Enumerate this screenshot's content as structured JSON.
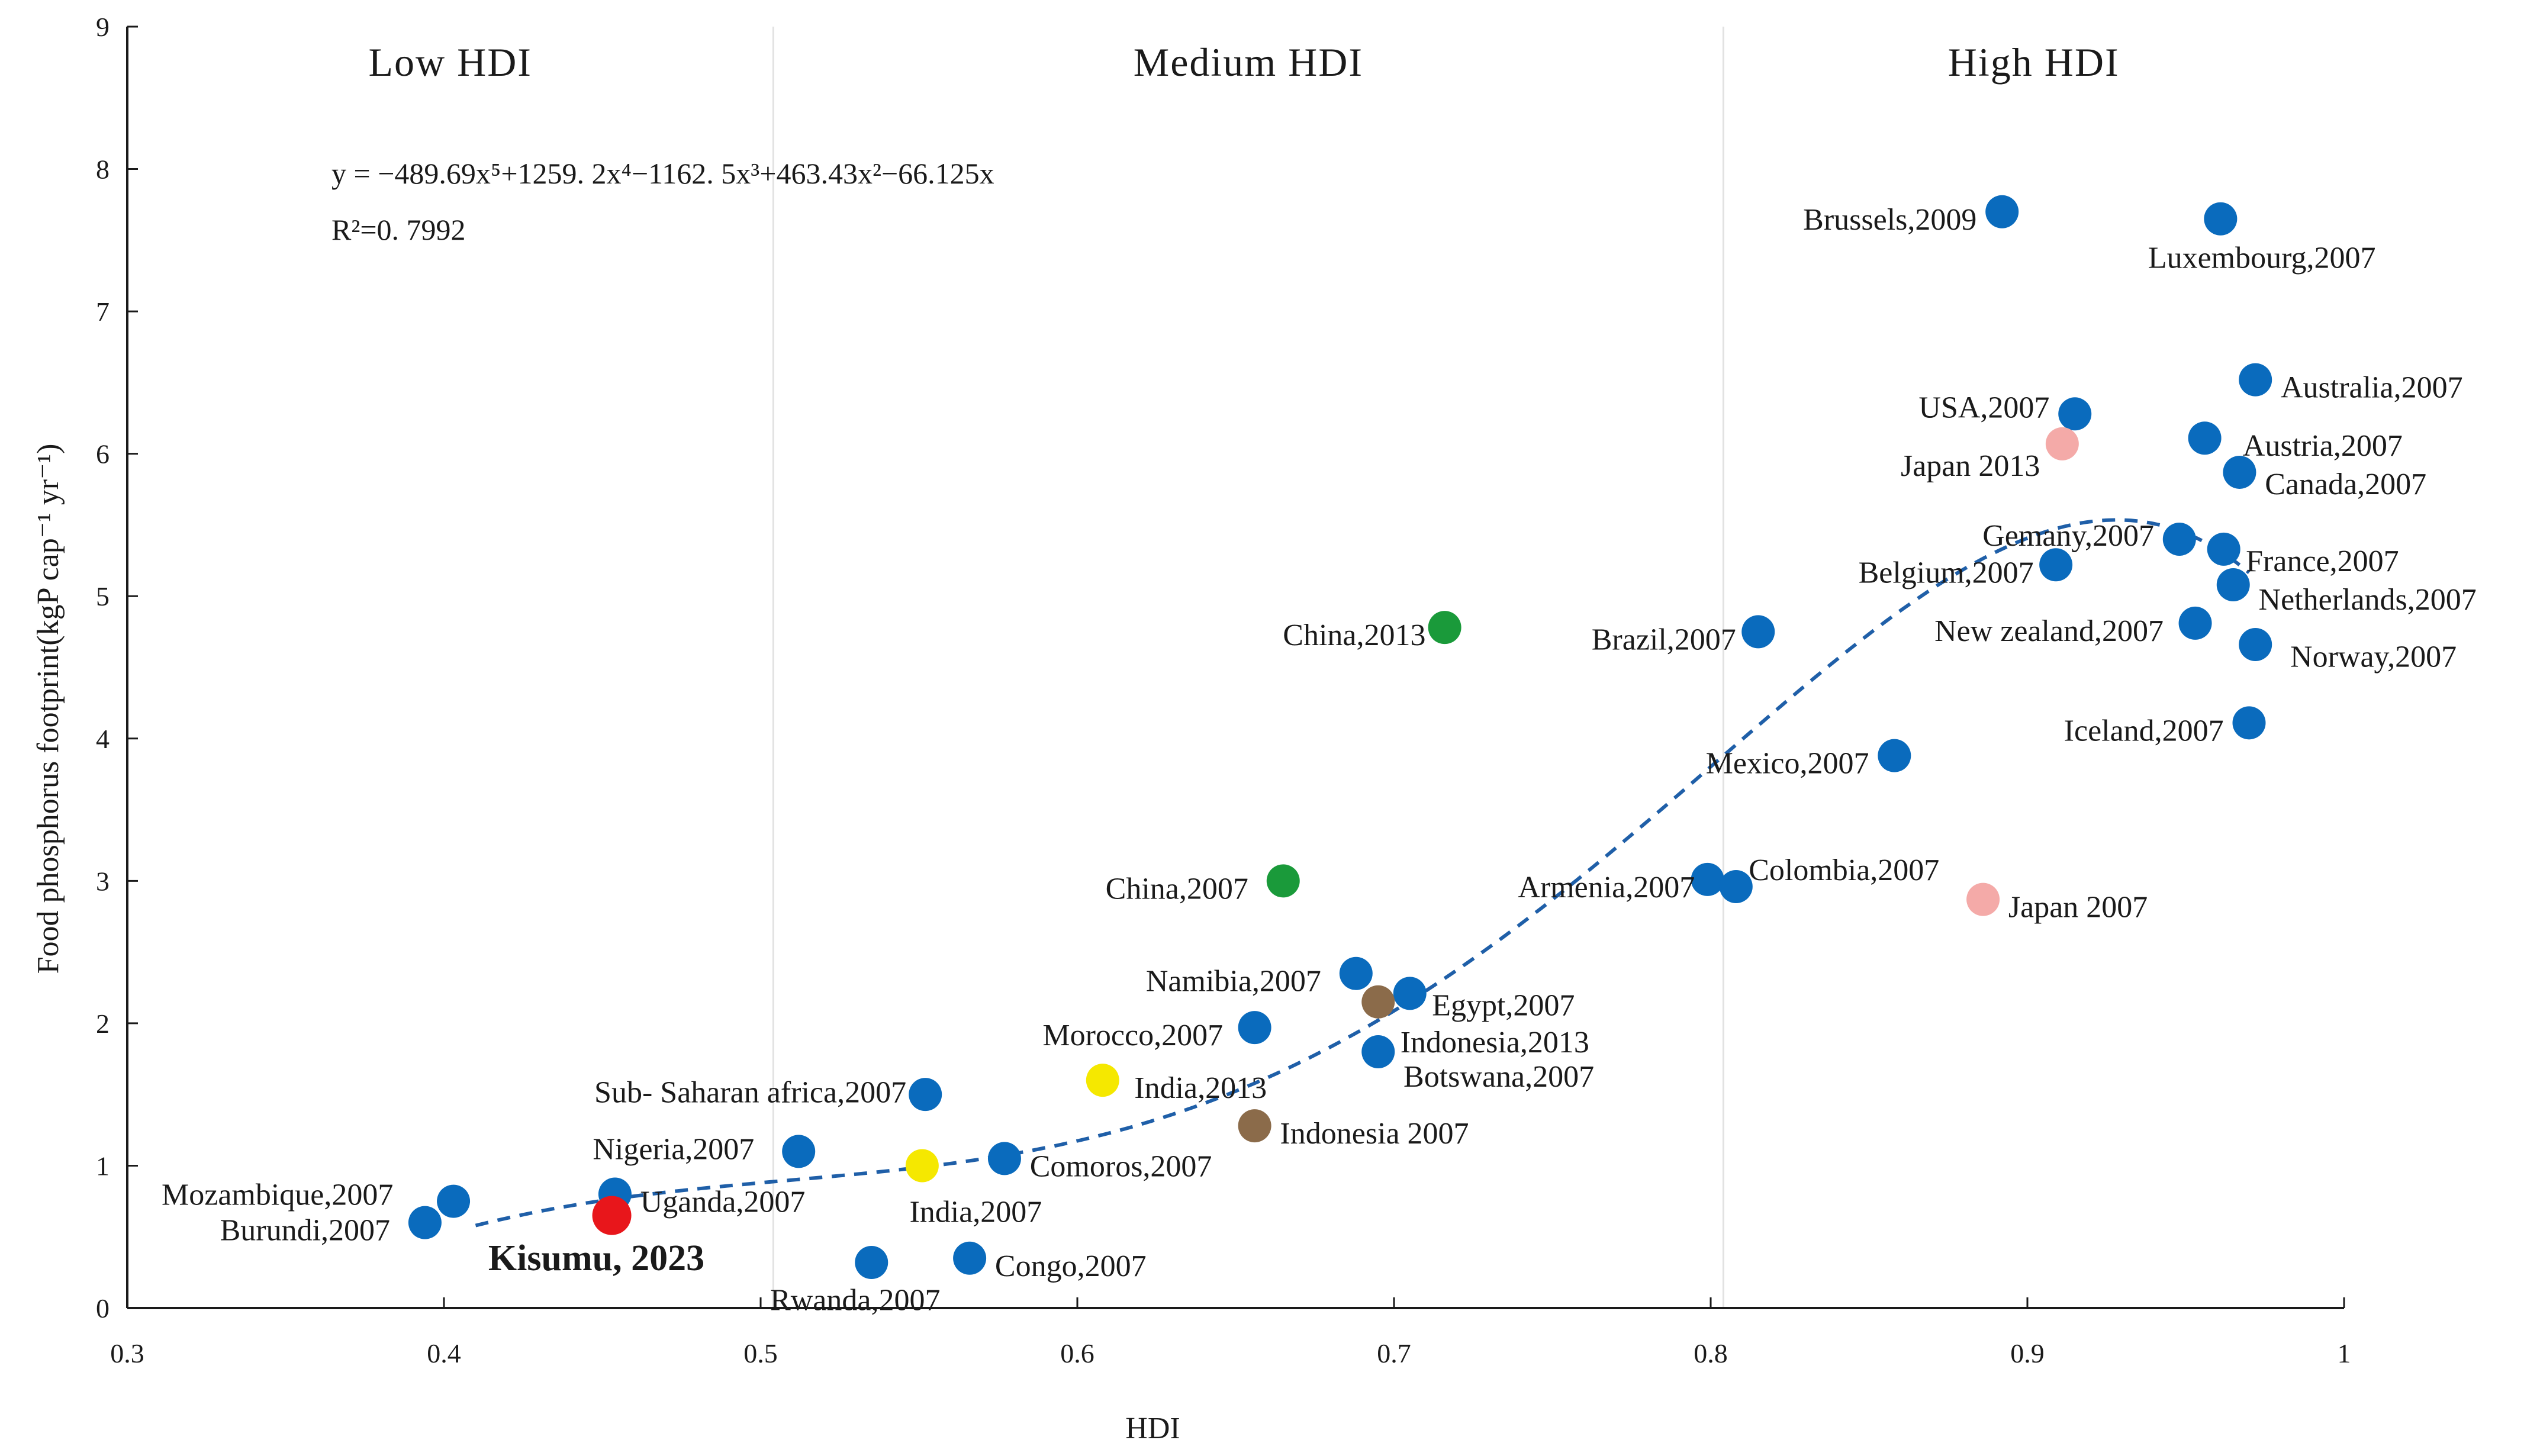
{
  "chart_data": {
    "type": "scatter",
    "title": "",
    "xlabel": "HDI",
    "ylabel": "Food phosphorus footprint(kgP cap⁻¹ yr⁻¹)",
    "xlim": [
      0.3,
      1.0
    ],
    "ylim": [
      0,
      9
    ],
    "x_ticks": [
      "0.3",
      "0.4",
      "0.5",
      "0.6",
      "0.7",
      "0.8",
      "0.9",
      "1"
    ],
    "y_ticks": [
      "0",
      "1",
      "2",
      "3",
      "4",
      "5",
      "6",
      "7",
      "8",
      "9"
    ],
    "regions": [
      {
        "label": "Low HDI",
        "from": 0.3,
        "to": 0.504
      },
      {
        "label": "Medium HDI",
        "from": 0.504,
        "to": 0.804
      },
      {
        "label": "High HDI",
        "from": 0.804,
        "to": 1.0
      }
    ],
    "equation": "y = −489.69x⁵+1259. 2x⁴−1162. 5x³+463.43x²−66.125x",
    "r_squared": "R²=0. 7992",
    "fit_curve": {
      "style": "dashed",
      "color": "#1f5fa8",
      "x_range": [
        0.41,
        0.97
      ]
    },
    "colors": {
      "blue": "#0a6bbd",
      "green": "#1a9a3a",
      "yellow": "#f5e800",
      "brown": "#8b6b4a",
      "pink": "#f4aaa8",
      "red": "#e8161b",
      "fit": "#1f5fa8"
    },
    "points": [
      {
        "label": "Mozambique,2007",
        "x": 0.403,
        "y": 0.75,
        "color": "blue",
        "anchor": "end",
        "lx": 0.384,
        "ly": 0.8
      },
      {
        "label": "Burundi,2007",
        "x": 0.394,
        "y": 0.6,
        "color": "blue",
        "anchor": "end",
        "lx": 0.383,
        "ly": 0.55
      },
      {
        "label": "Uganda,2007",
        "x": 0.454,
        "y": 0.8,
        "color": "blue",
        "anchor": "start",
        "lx": 0.462,
        "ly": 0.75
      },
      {
        "label": "Kisumu, 2023",
        "x": 0.453,
        "y": 0.65,
        "color": "red",
        "anchor": "start",
        "lx": 0.414,
        "ly": 0.34,
        "bold": true
      },
      {
        "label": "Nigeria,2007",
        "x": 0.512,
        "y": 1.1,
        "color": "blue",
        "anchor": "end",
        "lx": 0.498,
        "ly": 1.12
      },
      {
        "label": "Sub- Saharan africa,2007",
        "x": 0.552,
        "y": 1.5,
        "color": "blue",
        "anchor": "end",
        "lx": 0.546,
        "ly": 1.52
      },
      {
        "label": "Rwanda,2007",
        "x": 0.535,
        "y": 0.32,
        "color": "blue",
        "anchor": "start",
        "lx": 0.503,
        "ly": 0.06
      },
      {
        "label": "Congo,2007",
        "x": 0.566,
        "y": 0.35,
        "color": "blue",
        "anchor": "start",
        "lx": 0.574,
        "ly": 0.3
      },
      {
        "label": "India,2007",
        "x": 0.551,
        "y": 1.0,
        "color": "yellow",
        "anchor": "start",
        "lx": 0.547,
        "ly": 0.68
      },
      {
        "label": "Comoros,2007",
        "x": 0.577,
        "y": 1.05,
        "color": "blue",
        "anchor": "start",
        "lx": 0.585,
        "ly": 1.0
      },
      {
        "label": "India,2013",
        "x": 0.608,
        "y": 1.6,
        "color": "yellow",
        "anchor": "start",
        "lx": 0.618,
        "ly": 1.55
      },
      {
        "label": "Morocco,2007",
        "x": 0.656,
        "y": 1.97,
        "color": "blue",
        "anchor": "end",
        "lx": 0.646,
        "ly": 1.92
      },
      {
        "label": "Indonesia 2007",
        "x": 0.656,
        "y": 1.28,
        "color": "brown",
        "anchor": "start",
        "lx": 0.664,
        "ly": 1.23
      },
      {
        "label": "China,2007",
        "x": 0.665,
        "y": 3.0,
        "color": "green",
        "anchor": "end",
        "lx": 0.654,
        "ly": 2.95
      },
      {
        "label": "Namibia,2007",
        "x": 0.688,
        "y": 2.35,
        "color": "blue",
        "anchor": "end",
        "lx": 0.677,
        "ly": 2.3
      },
      {
        "label": "Egypt,2007",
        "x": 0.705,
        "y": 2.21,
        "color": "blue",
        "anchor": "start",
        "lx": 0.712,
        "ly": 2.13
      },
      {
        "label": "Indonesia,2013",
        "x": 0.695,
        "y": 2.15,
        "color": "brown",
        "anchor": "start",
        "lx": 0.702,
        "ly": 1.87
      },
      {
        "label": "Botswana,2007",
        "x": 0.695,
        "y": 1.8,
        "color": "blue",
        "anchor": "start",
        "lx": 0.703,
        "ly": 1.63
      },
      {
        "label": "China,2013",
        "x": 0.716,
        "y": 4.78,
        "color": "green",
        "anchor": "end",
        "lx": 0.71,
        "ly": 4.73
      },
      {
        "label": "Brazil,2007",
        "x": 0.815,
        "y": 4.75,
        "color": "blue",
        "anchor": "end",
        "lx": 0.808,
        "ly": 4.7
      },
      {
        "label": "Armenia,2007",
        "x": 0.799,
        "y": 3.01,
        "color": "blue",
        "anchor": "end",
        "lx": 0.795,
        "ly": 2.96
      },
      {
        "label": "Colombia,2007",
        "x": 0.808,
        "y": 2.96,
        "color": "blue",
        "anchor": "start",
        "lx": 0.812,
        "ly": 3.08
      },
      {
        "label": "Mexico,2007",
        "x": 0.858,
        "y": 3.88,
        "color": "blue",
        "anchor": "end",
        "lx": 0.85,
        "ly": 3.83
      },
      {
        "label": "Japan 2007",
        "x": 0.886,
        "y": 2.87,
        "color": "pink",
        "anchor": "start",
        "lx": 0.894,
        "ly": 2.82
      },
      {
        "label": "Brussels,2009",
        "x": 0.892,
        "y": 7.7,
        "color": "blue",
        "anchor": "end",
        "lx": 0.884,
        "ly": 7.65
      },
      {
        "label": "Luxembourg,2007",
        "x": 0.961,
        "y": 7.65,
        "color": "blue",
        "anchor": "end",
        "lx": 1.01,
        "ly": 7.38
      },
      {
        "label": "USA,2007",
        "x": 0.915,
        "y": 6.28,
        "color": "blue",
        "anchor": "end",
        "lx": 0.907,
        "ly": 6.33
      },
      {
        "label": "Japan 2013",
        "x": 0.911,
        "y": 6.07,
        "color": "pink",
        "anchor": "end",
        "lx": 0.904,
        "ly": 5.92
      },
      {
        "label": "Australia,2007",
        "x": 0.972,
        "y": 6.52,
        "color": "blue",
        "anchor": "start",
        "lx": 0.98,
        "ly": 6.47
      },
      {
        "label": "Austria,2007",
        "x": 0.956,
        "y": 6.11,
        "color": "blue",
        "anchor": "start",
        "lx": 0.968,
        "ly": 6.06
      },
      {
        "label": "Canada,2007",
        "x": 0.967,
        "y": 5.87,
        "color": "blue",
        "anchor": "start",
        "lx": 0.975,
        "ly": 5.79
      },
      {
        "label": "Gemany,2007",
        "x": 0.948,
        "y": 5.4,
        "color": "blue",
        "anchor": "end",
        "lx": 0.94,
        "ly": 5.43
      },
      {
        "label": "France,2007",
        "x": 0.962,
        "y": 5.33,
        "color": "blue",
        "anchor": "start",
        "lx": 0.969,
        "ly": 5.25
      },
      {
        "label": "Belgium,2007",
        "x": 0.909,
        "y": 5.22,
        "color": "blue",
        "anchor": "end",
        "lx": 0.902,
        "ly": 5.17
      },
      {
        "label": "Netherlands,2007",
        "x": 0.965,
        "y": 5.08,
        "color": "blue",
        "anchor": "start",
        "lx": 0.973,
        "ly": 4.98
      },
      {
        "label": "New zealand,2007",
        "x": 0.953,
        "y": 4.81,
        "color": "blue",
        "anchor": "end",
        "lx": 0.943,
        "ly": 4.76
      },
      {
        "label": "Norway,2007",
        "x": 0.972,
        "y": 4.66,
        "color": "blue",
        "anchor": "start",
        "lx": 0.983,
        "ly": 4.58
      },
      {
        "label": "Iceland,2007",
        "x": 0.97,
        "y": 4.11,
        "color": "blue",
        "anchor": "end",
        "lx": 0.962,
        "ly": 4.06
      }
    ]
  }
}
